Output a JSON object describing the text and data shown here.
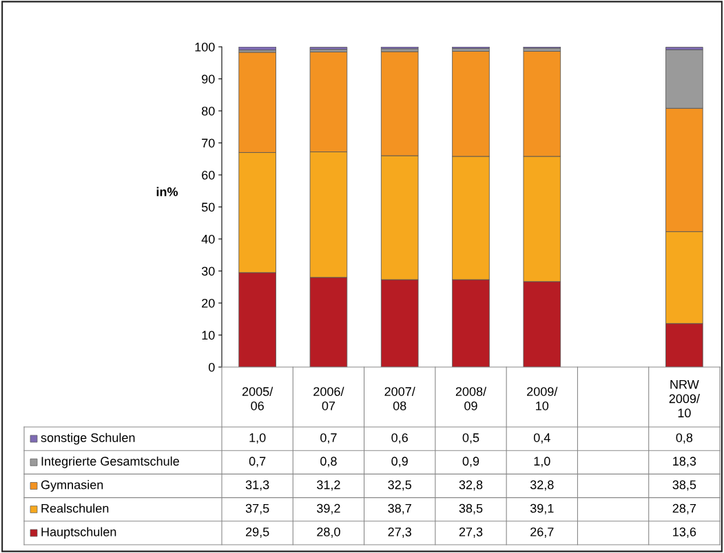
{
  "chart_data": {
    "type": "bar",
    "stacked": true,
    "ylabel": "in%",
    "categories": [
      "2005/\n06",
      "2006/\n07",
      "2007/\n08",
      "2008/\n09",
      "2009/\n10",
      null,
      "NRW\n2009/\n10"
    ],
    "series": [
      {
        "name": "Hauptschulen",
        "color": "#b71c24",
        "values": [
          29.5,
          28.0,
          27.3,
          27.3,
          26.7,
          null,
          13.6
        ],
        "value_labels": [
          "29,5",
          "28,0",
          "27,3",
          "27,3",
          "26,7",
          null,
          "13,6"
        ]
      },
      {
        "name": "Realschulen",
        "color": "#f6a81e",
        "values": [
          37.5,
          39.2,
          38.7,
          38.5,
          39.1,
          null,
          28.7
        ],
        "value_labels": [
          "37,5",
          "39,2",
          "38,7",
          "38,5",
          "39,1",
          null,
          "28,7"
        ]
      },
      {
        "name": "Gymnasien",
        "color": "#f39322",
        "values": [
          31.3,
          31.2,
          32.5,
          32.8,
          32.8,
          null,
          38.5
        ],
        "value_labels": [
          "31,3",
          "31,2",
          "32,5",
          "32,8",
          "32,8",
          null,
          "38,5"
        ]
      },
      {
        "name": "Integrierte Gesamtschule",
        "color": "#9a9a9a",
        "values": [
          0.7,
          0.8,
          0.9,
          0.9,
          1.0,
          null,
          18.3
        ],
        "value_labels": [
          "0,7",
          "0,8",
          "0,9",
          "0,9",
          "1,0",
          null,
          "18,3"
        ]
      },
      {
        "name": "sonstige Schulen",
        "color": "#7e6bb3",
        "values": [
          1.0,
          0.7,
          0.6,
          0.5,
          0.4,
          null,
          0.8
        ],
        "value_labels": [
          "1,0",
          "0,7",
          "0,6",
          "0,5",
          "0,4",
          null,
          "0,8"
        ]
      }
    ],
    "ylim": [
      0,
      100
    ],
    "yticks": [
      0,
      10,
      20,
      30,
      40,
      50,
      60,
      70,
      80,
      90,
      100
    ],
    "grid": false,
    "legend": "bottom",
    "tick_labels": "y"
  }
}
